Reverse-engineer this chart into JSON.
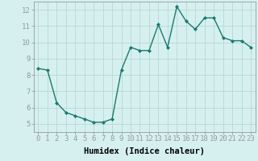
{
  "x": [
    0,
    1,
    2,
    3,
    4,
    5,
    6,
    7,
    8,
    9,
    10,
    11,
    12,
    13,
    14,
    15,
    16,
    17,
    18,
    19,
    20,
    21,
    22,
    23
  ],
  "y": [
    8.4,
    8.3,
    6.3,
    5.7,
    5.5,
    5.3,
    5.1,
    5.1,
    5.3,
    8.3,
    9.7,
    9.5,
    9.5,
    11.1,
    9.7,
    12.2,
    11.3,
    10.8,
    11.5,
    11.5,
    10.3,
    10.1,
    10.1,
    9.7
  ],
  "line_color": "#1a7a6e",
  "marker": "D",
  "marker_size": 2.0,
  "bg_color": "#d6f0f0",
  "grid_color": "#b8d8d8",
  "xlabel": "Humidex (Indice chaleur)",
  "ylim": [
    4.5,
    12.5
  ],
  "xlim": [
    -0.5,
    23.5
  ],
  "yticks": [
    5,
    6,
    7,
    8,
    9,
    10,
    11,
    12
  ],
  "xticks": [
    0,
    1,
    2,
    3,
    4,
    5,
    6,
    7,
    8,
    9,
    10,
    11,
    12,
    13,
    14,
    15,
    16,
    17,
    18,
    19,
    20,
    21,
    22,
    23
  ],
  "linewidth": 1.0,
  "xlabel_fontsize": 7.5,
  "tick_fontsize": 6.5,
  "spine_color": "#999999"
}
